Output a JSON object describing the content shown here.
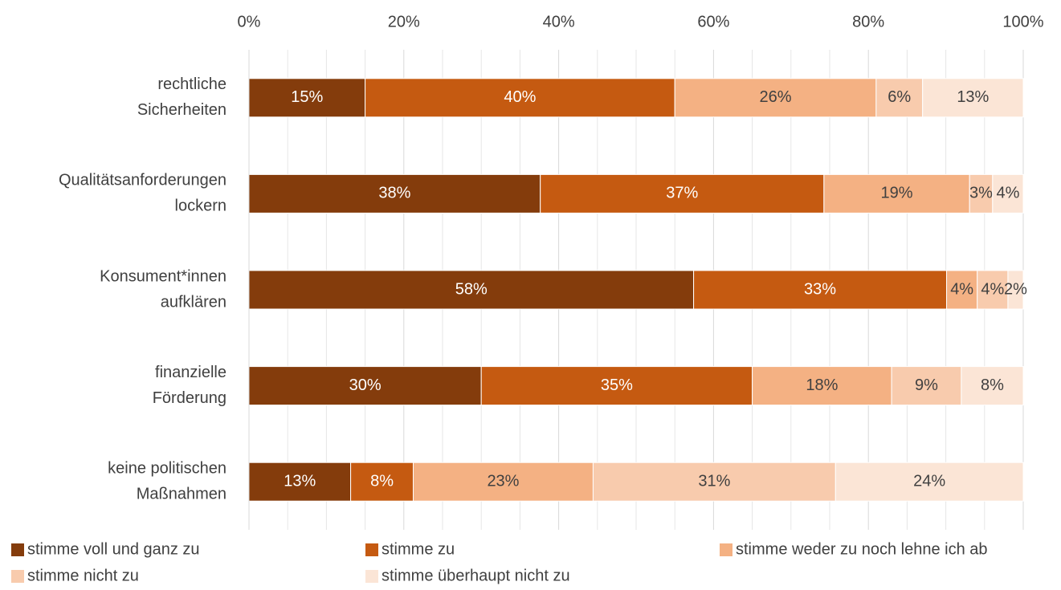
{
  "chart_data": {
    "type": "bar",
    "orientation": "horizontal",
    "stacking": "percent",
    "categories": [
      [
        "rechtliche",
        "Sicherheiten"
      ],
      [
        "Qualitätsanforderungen",
        "lockern"
      ],
      [
        "Konsument*innen",
        "aufklären"
      ],
      [
        "finanzielle",
        "Förderung"
      ],
      [
        "keine politischen",
        "Maßnahmen"
      ]
    ],
    "series": [
      {
        "name": "stimme voll und ganz zu",
        "color": "#843c0c",
        "label_color": "#ffffff",
        "values": [
          15,
          38,
          58,
          30,
          13
        ],
        "value_labels": [
          "15%",
          "38%",
          "58%",
          "30%",
          "13%"
        ]
      },
      {
        "name": "stimme zu",
        "color": "#c55a11",
        "label_color": "#ffffff",
        "values": [
          40,
          37,
          33,
          35,
          8
        ],
        "value_labels": [
          "40%",
          "37%",
          "33%",
          "35%",
          "8%"
        ]
      },
      {
        "name": "stimme weder zu noch lehne ich ab",
        "color": "#f4b183",
        "label_color": "#404040",
        "values": [
          26,
          19,
          4,
          18,
          23
        ],
        "value_labels": [
          "26%",
          "19%",
          "4%",
          "18%",
          "23%"
        ]
      },
      {
        "name": "stimme nicht zu",
        "color": "#f8cbad",
        "label_color": "#404040",
        "values": [
          6,
          3,
          4,
          9,
          31
        ],
        "value_labels": [
          "6%",
          "3%",
          "4%",
          "9%",
          "31%"
        ]
      },
      {
        "name": "stimme überhaupt nicht zu",
        "color": "#fbe5d6",
        "label_color": "#404040",
        "values": [
          13,
          4,
          2,
          8,
          24
        ],
        "value_labels": [
          "13%",
          "4%",
          "2%",
          "8%",
          "24%"
        ]
      }
    ],
    "xlim": [
      0,
      100
    ],
    "xticks": [
      {
        "value": 0,
        "label": "0%"
      },
      {
        "value": 20,
        "label": "20%"
      },
      {
        "value": 40,
        "label": "40%"
      },
      {
        "value": 60,
        "label": "60%"
      },
      {
        "value": 80,
        "label": "80%"
      },
      {
        "value": 100,
        "label": "100%"
      }
    ],
    "minor_xticks": [
      5,
      10,
      15,
      25,
      30,
      35,
      45,
      50,
      55,
      65,
      70,
      75,
      85,
      90,
      95
    ],
    "grid": true,
    "legend": "bottom"
  }
}
